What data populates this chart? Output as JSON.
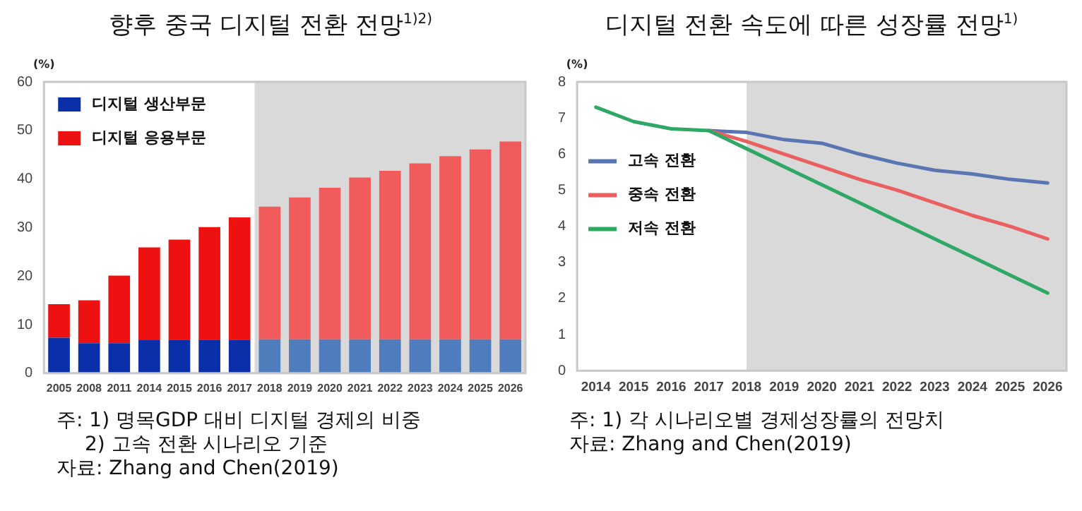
{
  "chart_data": [
    {
      "type": "bar",
      "title": "향후 중국 디지털 전환 전망$^{1)2)}$",
      "ylabel": "(%)",
      "stacked": true,
      "legend": "top left",
      "grid": false,
      "categories": [
        "2005",
        "2008",
        "2011",
        "2014",
        "2015",
        "2016",
        "2017",
        "2018",
        "2019",
        "2020",
        "2021",
        "2022",
        "2023",
        "2024",
        "2025",
        "2026"
      ],
      "series": [
        {
          "name": "디지털 생산부문",
          "color": "#0a2fa8",
          "colors": [
            "#0a2fa8",
            "#0a2fa8",
            "#0a2fa8",
            "#0a2fa8",
            "#0a2fa8",
            "#0a2fa8",
            "#0a2fa8",
            "#4f7cbc",
            "#4f7cbc",
            "#4f7cbc",
            "#4f7cbc",
            "#4f7cbc",
            "#4f7cbc",
            "#4f7cbc",
            "#4f7cbc",
            "#4f7cbc"
          ],
          "values": [
            7.3,
            6.2,
            6.2,
            6.8,
            6.9,
            6.9,
            6.9,
            7.0,
            7.0,
            7.0,
            7.0,
            7.0,
            7.0,
            7.0,
            7.0,
            7.0
          ]
        },
        {
          "name": "디지털 응용부문",
          "color": "#ee1111",
          "colors": [
            "#ee1111",
            "#ee1111",
            "#ee1111",
            "#ee1111",
            "#ee1111",
            "#ee1111",
            "#ee1111",
            "#f25b5b",
            "#f25b5b",
            "#f25b5b",
            "#f25b5b",
            "#f25b5b",
            "#f25b5b",
            "#f25b5b",
            "#f25b5b",
            "#f25b5b"
          ],
          "values": [
            6.9,
            8.8,
            13.9,
            19.1,
            20.6,
            23.2,
            25.2,
            27.3,
            29.2,
            31.2,
            33.3,
            34.7,
            36.2,
            37.7,
            39.1,
            40.7
          ]
        }
      ],
      "ylim": [
        0,
        60
      ],
      "yticks": [
        0,
        10,
        20,
        30,
        40,
        50,
        60
      ],
      "bands": [
        {
          "axis": "x",
          "from": "2018",
          "to": "2026",
          "color": "#d9d9d9"
        }
      ],
      "annotations": [
        "주: 1) 명목GDP 대비 디지털 경제의 비중",
        "2) 고속 전환 시나리오 기준",
        "자료: Zhang and Chen(2019)"
      ]
    },
    {
      "type": "line",
      "title": "디지털 전환 속도에 따른 성장률 전망$^{1)}$",
      "ylabel": "(%)",
      "legend": "left",
      "grid": false,
      "marker": "none",
      "line_style": "solid",
      "categories": [
        "2014",
        "2015",
        "2016",
        "2017",
        "2018",
        "2019",
        "2020",
        "2021",
        "2022",
        "2023",
        "2024",
        "2025",
        "2026"
      ],
      "series": [
        {
          "name": "고속 전환",
          "color": "#5a76b2",
          "values": [
            null,
            null,
            null,
            6.65,
            6.6,
            6.4,
            6.3,
            6.0,
            5.75,
            5.55,
            5.45,
            5.3,
            5.2
          ]
        },
        {
          "name": "중속 전환",
          "color": "#ea5f5f",
          "values": [
            null,
            null,
            null,
            6.65,
            6.35,
            6.0,
            5.65,
            5.3,
            5.0,
            4.65,
            4.3,
            4.0,
            3.65
          ]
        },
        {
          "name": "저속 전환",
          "color": "#2ea864",
          "values": [
            7.3,
            6.9,
            6.7,
            6.65,
            6.15,
            5.65,
            5.15,
            4.65,
            4.15,
            3.65,
            3.15,
            2.65,
            2.15
          ]
        }
      ],
      "ylim": [
        0,
        8
      ],
      "yticks": [
        0,
        1,
        2,
        3,
        4,
        5,
        6,
        7,
        8
      ],
      "bands": [
        {
          "axis": "x",
          "from": "2018",
          "to": "2026",
          "color": "#d9d9d9"
        }
      ],
      "annotations": [
        "주: 1) 각 시나리오별 경제성장률의 전망치",
        "자료: Zhang and Chen(2019)"
      ]
    }
  ]
}
